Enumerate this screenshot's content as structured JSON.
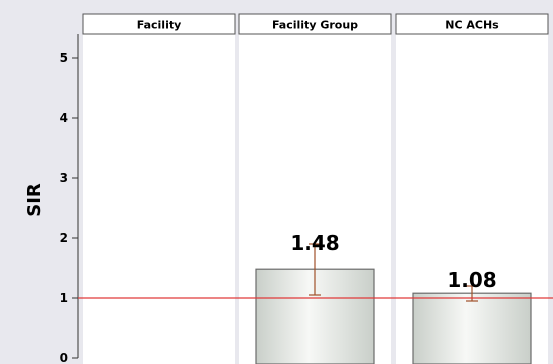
{
  "chart_data": {
    "type": "bar",
    "title": "",
    "xlabel": "",
    "ylabel": "SIR",
    "ylim": [
      0,
      5.4
    ],
    "yticks": [
      0,
      1,
      2,
      3,
      4,
      5
    ],
    "grid": false,
    "reference_line": {
      "y": 1,
      "color": "#e03a3a"
    },
    "panels": [
      {
        "label": "Facility",
        "value": null,
        "ci": null,
        "value_label": ""
      },
      {
        "label": "Facility Group",
        "value": 1.48,
        "ci": [
          1.05,
          1.9
        ],
        "value_label": "1.48"
      },
      {
        "label": "NC ACHs",
        "value": 1.08,
        "ci": [
          0.95,
          1.2
        ],
        "value_label": "1.08"
      }
    ],
    "colors": {
      "panel_bg": "#ffffff",
      "bar_fill_light": "#f7f8f6",
      "bar_fill_dark": "#c9cfc9",
      "bar_stroke": "#6b6b6b",
      "error_bar": "#a0502a",
      "axis": "#333333"
    }
  }
}
